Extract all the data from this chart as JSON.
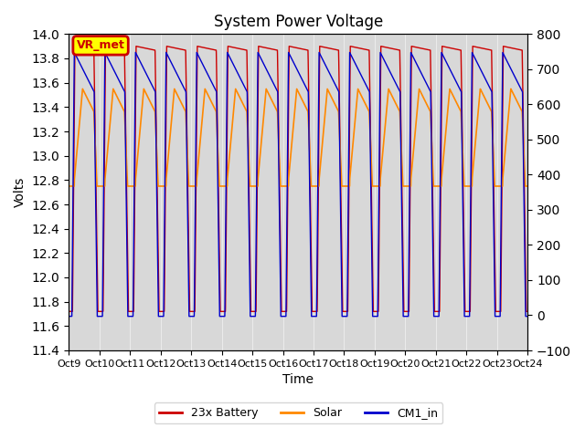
{
  "title": "System Power Voltage",
  "xlabel": "Time",
  "ylabel_left": "Volts",
  "ylabel_right": "",
  "ylim_left": [
    11.4,
    14.0
  ],
  "ylim_right": [
    -100,
    800
  ],
  "yticks_left": [
    11.4,
    11.6,
    11.8,
    12.0,
    12.2,
    12.4,
    12.6,
    12.8,
    13.0,
    13.2,
    13.4,
    13.6,
    13.8,
    14.0
  ],
  "yticks_right": [
    -100,
    0,
    100,
    200,
    300,
    400,
    500,
    600,
    700,
    800
  ],
  "x_labels": [
    "Oct 9",
    "Oct 10",
    "Oct 11",
    "Oct 12",
    "Oct 13",
    "Oct 14",
    "Oct 15",
    "Oct 16",
    "Oct 17",
    "Oct 18",
    "Oct 19",
    "Oct 20",
    "Oct 21",
    "Oct 22",
    "Oct 23",
    "Oct 24"
  ],
  "color_battery": "#cc0000",
  "color_solar": "#ff8800",
  "color_cm1": "#0000cc",
  "color_shading": "#d8d8d8",
  "vr_met_box_color": "#ffff00",
  "vr_met_text_color": "#cc0000",
  "legend_battery": "23x Battery",
  "legend_solar": "Solar",
  "legend_cm1": "CM1_in",
  "annotation": "VR_met",
  "n_cycles": 15,
  "battery_base": 11.72,
  "battery_high": 13.9,
  "solar_base": 12.8,
  "solar_high": 13.55,
  "cm1_base": 11.68,
  "cm1_high": 13.85,
  "background_color": "#ffffff"
}
